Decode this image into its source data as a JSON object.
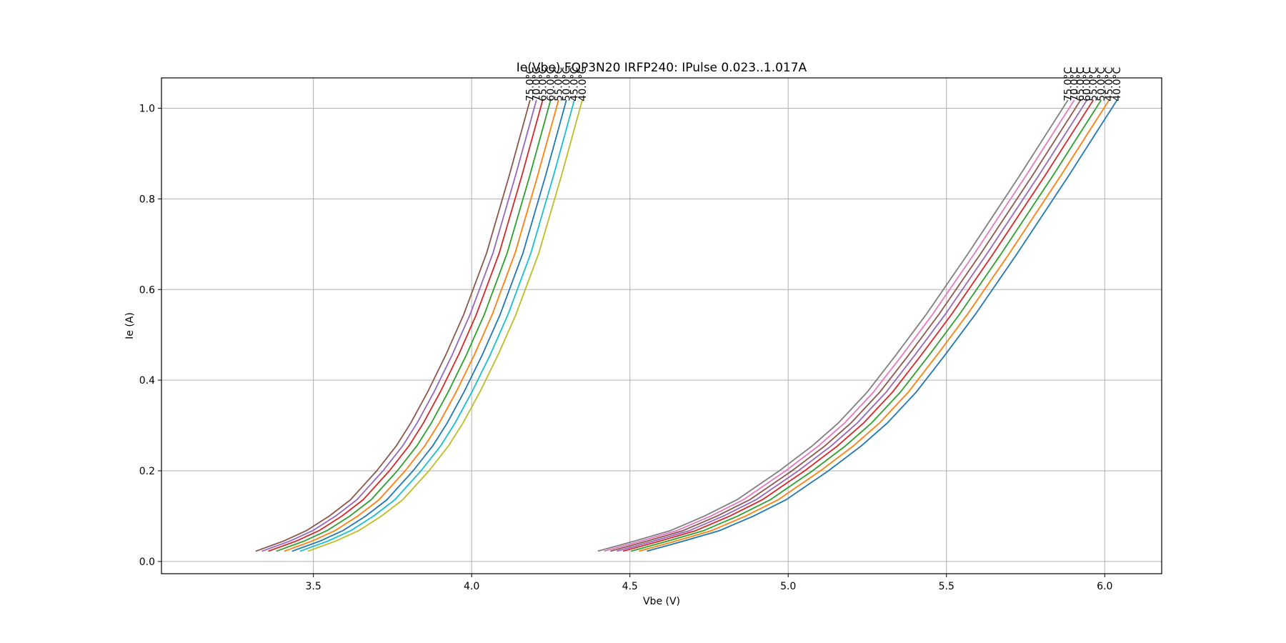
{
  "chart_data": {
    "type": "line",
    "title": "Ie(Vbe) FQP3N20 IRFP240: IPulse 0.023..1.017A",
    "xlabel": "Vbe (V)",
    "ylabel": "Ie (A)",
    "xlim": [
      3.02,
      6.18
    ],
    "ylim": [
      -0.027,
      1.067
    ],
    "xticks": [
      3.5,
      4.0,
      4.5,
      5.0,
      5.5,
      6.0
    ],
    "yticks": [
      0.0,
      0.2,
      0.4,
      0.6,
      0.8,
      1.0
    ],
    "grid": true,
    "y_samples": [
      0.023,
      0.045,
      0.068,
      0.1,
      0.136,
      0.2,
      0.255,
      0.306,
      0.374,
      0.455,
      0.545,
      0.68,
      0.85,
      1.017
    ],
    "groups": [
      {
        "device": "FQP3N20",
        "base_x": [
          3.319,
          3.406,
          3.478,
          3.55,
          3.617,
          3.7,
          3.762,
          3.808,
          3.861,
          3.918,
          3.975,
          4.047,
          4.118,
          4.184
        ],
        "series": [
          {
            "label": "40.0°C",
            "color": "#bcbd22",
            "shift": 0.165
          },
          {
            "label": "45.0°C",
            "color": "#17becf",
            "shift": 0.14
          },
          {
            "label": "50.0°C",
            "color": "#1f77b4",
            "shift": 0.115
          },
          {
            "label": "55.0°C",
            "color": "#ff7f0e",
            "shift": 0.09
          },
          {
            "label": "60.0°C",
            "color": "#2ca02c",
            "shift": 0.065
          },
          {
            "label": "65.0°C",
            "color": "#d62728",
            "shift": 0.04
          },
          {
            "label": "70.0°C",
            "color": "#9467bd",
            "shift": 0.02
          },
          {
            "label": "75.0°C",
            "color": "#8c564b",
            "shift": 0.0
          }
        ]
      },
      {
        "device": "IRFP240",
        "base_x": [
          4.4,
          4.515,
          4.628,
          4.735,
          4.838,
          4.972,
          5.076,
          5.159,
          5.25,
          5.34,
          5.436,
          5.569,
          5.73,
          5.883
        ],
        "series": [
          {
            "label": "40.0°C",
            "color": "#1f77b4",
            "shift": 0.155
          },
          {
            "label": "45.0°C",
            "color": "#ff7f0e",
            "shift": 0.13
          },
          {
            "label": "50.0°C",
            "color": "#2ca02c",
            "shift": 0.105
          },
          {
            "label": "55.0°C",
            "color": "#d62728",
            "shift": 0.08
          },
          {
            "label": "60.0°C",
            "color": "#9467bd",
            "shift": 0.06
          },
          {
            "label": "65.0°C",
            "color": "#8c564b",
            "shift": 0.04
          },
          {
            "label": "70.0°C",
            "color": "#e377c2",
            "shift": 0.02
          },
          {
            "label": "75.0°C",
            "color": "#7f7f7f",
            "shift": 0.0
          }
        ]
      }
    ]
  }
}
